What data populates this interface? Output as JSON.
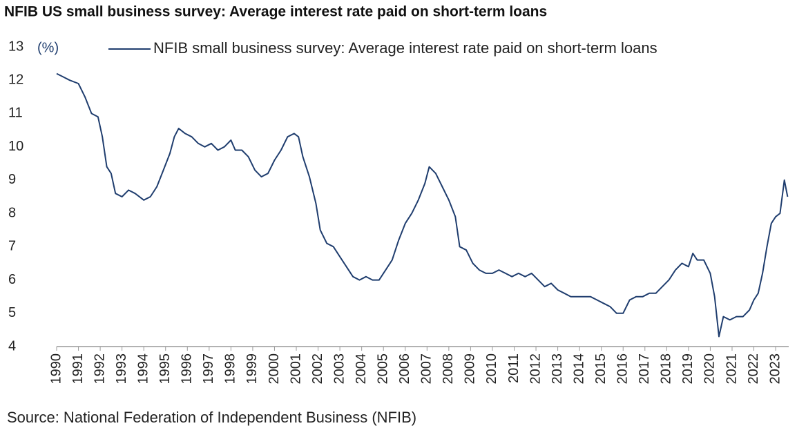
{
  "chart_data": {
    "type": "line",
    "title": "NFIB US small business survey: Average interest rate paid on short-term loans",
    "y_label": "(%)",
    "source": "Source: National Federation of Independent Business (NFIB)",
    "legend": "top-right",
    "xlim": [
      1990,
      2023.6
    ],
    "xticks": [
      1990,
      1991,
      1992,
      1993,
      1994,
      1995,
      1996,
      1997,
      1998,
      1999,
      2000,
      2001,
      2002,
      2003,
      2004,
      2005,
      2006,
      2007,
      2008,
      2009,
      2010,
      2011,
      2012,
      2013,
      2014,
      2015,
      2016,
      2017,
      2018,
      2019,
      2020,
      2021,
      2022,
      2023
    ],
    "ylim": [
      4,
      13
    ],
    "yticks": [
      4,
      5,
      6,
      7,
      8,
      9,
      10,
      11,
      12,
      13
    ],
    "grid": false,
    "x": [
      1990.0,
      1990.3,
      1990.6,
      1991.0,
      1991.3,
      1991.6,
      1991.9,
      1992.1,
      1992.3,
      1992.5,
      1992.7,
      1993.0,
      1993.3,
      1993.6,
      1994.0,
      1994.3,
      1994.6,
      1994.9,
      1995.2,
      1995.4,
      1995.6,
      1995.9,
      1996.2,
      1996.5,
      1996.8,
      1997.1,
      1997.4,
      1997.7,
      1998.0,
      1998.2,
      1998.5,
      1998.8,
      1999.1,
      1999.4,
      1999.7,
      2000.0,
      2000.3,
      2000.6,
      2000.9,
      2001.1,
      2001.3,
      2001.6,
      2001.9,
      2002.1,
      2002.4,
      2002.7,
      2003.0,
      2003.3,
      2003.6,
      2003.9,
      2004.2,
      2004.5,
      2004.8,
      2005.1,
      2005.4,
      2005.7,
      2006.0,
      2006.3,
      2006.6,
      2006.9,
      2007.1,
      2007.4,
      2007.7,
      2008.0,
      2008.3,
      2008.5,
      2008.8,
      2009.1,
      2009.4,
      2009.7,
      2010.0,
      2010.3,
      2010.6,
      2010.9,
      2011.2,
      2011.5,
      2011.8,
      2012.1,
      2012.4,
      2012.7,
      2013.0,
      2013.3,
      2013.6,
      2013.9,
      2014.2,
      2014.5,
      2014.8,
      2015.1,
      2015.4,
      2015.7,
      2016.0,
      2016.3,
      2016.6,
      2016.9,
      2017.2,
      2017.5,
      2017.8,
      2018.1,
      2018.4,
      2018.7,
      2019.0,
      2019.2,
      2019.4,
      2019.7,
      2020.0,
      2020.2,
      2020.4,
      2020.6,
      2020.9,
      2021.2,
      2021.5,
      2021.8,
      2022.0,
      2022.2,
      2022.4,
      2022.6,
      2022.8,
      2023.0,
      2023.2,
      2023.4,
      2023.55
    ],
    "series": [
      {
        "name": "NFIB small business survey: Average interest rate paid on short-term loans",
        "color": "#1f3d6e",
        "values": [
          12.2,
          12.1,
          12.0,
          11.9,
          11.5,
          11.0,
          10.9,
          10.3,
          9.4,
          9.2,
          8.6,
          8.5,
          8.7,
          8.6,
          8.4,
          8.5,
          8.8,
          9.3,
          9.8,
          10.3,
          10.55,
          10.4,
          10.3,
          10.1,
          10.0,
          10.1,
          9.9,
          10.0,
          10.2,
          9.9,
          9.9,
          9.7,
          9.3,
          9.1,
          9.2,
          9.6,
          9.9,
          10.3,
          10.4,
          10.3,
          9.7,
          9.1,
          8.3,
          7.5,
          7.1,
          7.0,
          6.7,
          6.4,
          6.1,
          6.0,
          6.1,
          6.0,
          6.0,
          6.3,
          6.6,
          7.2,
          7.7,
          8.0,
          8.4,
          8.9,
          9.4,
          9.2,
          8.8,
          8.4,
          7.9,
          7.0,
          6.9,
          6.5,
          6.3,
          6.2,
          6.2,
          6.3,
          6.2,
          6.1,
          6.2,
          6.1,
          6.2,
          6.0,
          5.8,
          5.9,
          5.7,
          5.6,
          5.5,
          5.5,
          5.5,
          5.5,
          5.4,
          5.3,
          5.2,
          5.0,
          5.0,
          5.4,
          5.5,
          5.5,
          5.6,
          5.6,
          5.8,
          6.0,
          6.3,
          6.5,
          6.4,
          6.8,
          6.6,
          6.6,
          6.2,
          5.5,
          4.3,
          4.9,
          4.8,
          4.9,
          4.9,
          5.1,
          5.4,
          5.6,
          6.2,
          7.0,
          7.7,
          7.9,
          8.0,
          9.0,
          8.5
        ]
      }
    ]
  }
}
